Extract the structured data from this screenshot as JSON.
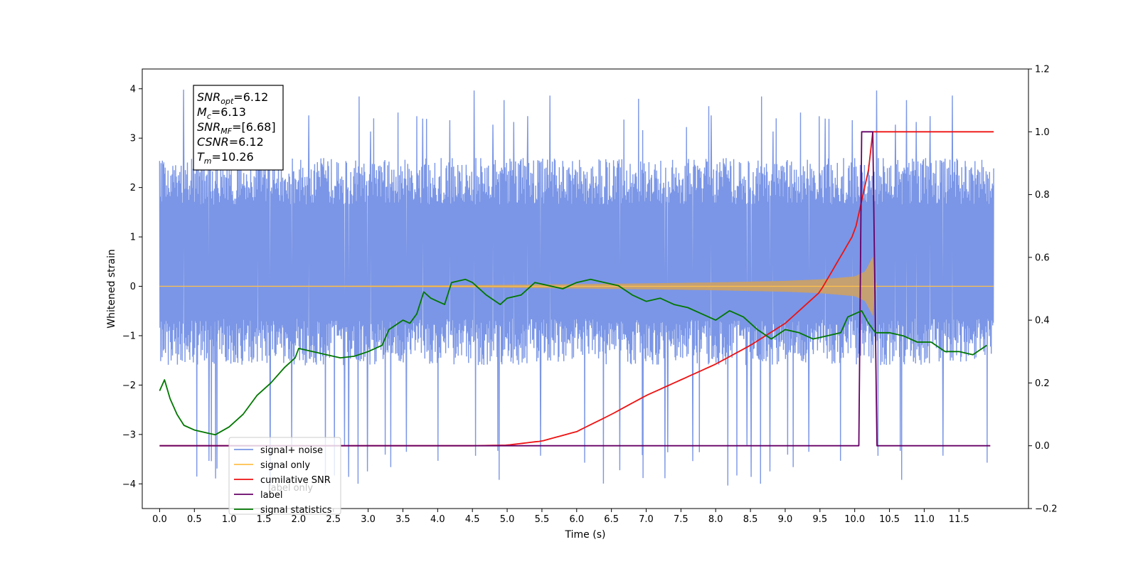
{
  "chart_data": {
    "type": "line",
    "xlabel": "Time (s)",
    "ylabel": "Whitened strain",
    "xlim": [
      -0.25,
      12.5
    ],
    "ylim": [
      -4.5,
      4.4
    ],
    "y2lim": [
      -0.2,
      1.2
    ],
    "x_ticks": [
      "0.0",
      "0.5",
      "1.0",
      "1.5",
      "2.0",
      "2.5",
      "3.0",
      "3.5",
      "4.0",
      "4.5",
      "5.0",
      "5.5",
      "6.0",
      "6.5",
      "7.0",
      "7.5",
      "8.0",
      "8.5",
      "9.0",
      "9.5",
      "10.0",
      "10.5",
      "11.0",
      "11.5"
    ],
    "y_ticks": [
      "4",
      "3",
      "2",
      "1",
      "0",
      "−1",
      "−2",
      "−3",
      "−4"
    ],
    "y2_ticks": [
      "1.2",
      "1.0",
      "0.8",
      "0.6",
      "0.4",
      "0.2",
      "0.0",
      "−0.2"
    ],
    "annotation": {
      "lines": [
        {
          "sym": "SNR",
          "sub": "opt",
          "val": "=6.12"
        },
        {
          "sym": "M",
          "sub": "c",
          "val": "=6.13"
        },
        {
          "sym": "SNR",
          "sub": "MF",
          "val": "=[6.68]"
        },
        {
          "sym": "CSNR",
          "sub": "",
          "val": "=6.12"
        },
        {
          "sym": "T",
          "sub": "m",
          "val": "=10.26"
        }
      ]
    },
    "legend": {
      "placement": "lower-left",
      "entries": [
        {
          "label": "signal+ noise",
          "color": "#7b96e6"
        },
        {
          "label": "signal only",
          "color": "#ffc04c"
        },
        {
          "label": "cumilative SNR",
          "color": "#ee1111"
        },
        {
          "label": "label",
          "color": "#660066"
        },
        {
          "label": "signal statistics",
          "color": "#007700"
        }
      ],
      "hidden_text": [
        "label only"
      ]
    },
    "series": [
      {
        "name": "signal+ noise",
        "axis": "left",
        "color": "#7b96e6",
        "noise": {
          "x_start": 0.0,
          "x_end": 12.0,
          "center": 0.0,
          "typical_band": [
            -1.6,
            2.6
          ],
          "peak_max": 4.0,
          "peak_min": -4.1
        }
      },
      {
        "name": "signal only",
        "axis": "left",
        "color": "#ffc04c",
        "envelope": {
          "x": [
            0.0,
            2.0,
            4.0,
            5.0,
            6.0,
            7.0,
            8.0,
            9.0,
            9.5,
            10.0,
            10.15,
            10.26,
            10.3,
            12.0
          ],
          "amp": [
            0.005,
            0.01,
            0.02,
            0.03,
            0.045,
            0.06,
            0.08,
            0.11,
            0.14,
            0.2,
            0.3,
            0.6,
            0.0,
            0.0
          ]
        }
      },
      {
        "name": "cumilative SNR",
        "axis": "right",
        "color": "#ee1111",
        "x": [
          0.0,
          4.5,
          5.0,
          5.5,
          6.0,
          6.5,
          7.0,
          7.5,
          8.0,
          8.5,
          9.0,
          9.5,
          10.0,
          10.2,
          10.26,
          12.0
        ],
        "y": [
          0.0,
          0.0,
          0.002,
          0.015,
          0.045,
          0.1,
          0.16,
          0.21,
          0.26,
          0.32,
          0.39,
          0.49,
          0.68,
          0.88,
          1.0,
          1.0
        ]
      },
      {
        "name": "label",
        "axis": "right",
        "color": "#660066",
        "x": [
          0.0,
          10.06,
          10.1,
          10.26,
          10.32,
          11.95
        ],
        "y": [
          0.0,
          0.0,
          1.0,
          1.0,
          0.0,
          0.0
        ]
      },
      {
        "name": "signal statistics",
        "axis": "right",
        "color": "#007700",
        "x": [
          0.0,
          0.07,
          0.15,
          0.25,
          0.35,
          0.5,
          0.7,
          0.8,
          1.0,
          1.2,
          1.4,
          1.6,
          1.8,
          1.95,
          2.0,
          2.2,
          2.4,
          2.6,
          2.8,
          3.0,
          3.2,
          3.3,
          3.5,
          3.6,
          3.7,
          3.8,
          3.9,
          4.0,
          4.1,
          4.2,
          4.4,
          4.5,
          4.7,
          4.9,
          5.0,
          5.2,
          5.4,
          5.6,
          5.8,
          6.0,
          6.2,
          6.4,
          6.6,
          6.8,
          7.0,
          7.2,
          7.4,
          7.6,
          7.8,
          8.0,
          8.2,
          8.4,
          8.5,
          8.6,
          8.8,
          9.0,
          9.2,
          9.4,
          9.6,
          9.8,
          9.9,
          10.0,
          10.1,
          10.2,
          10.3,
          10.5,
          10.7,
          10.9,
          11.1,
          11.3,
          11.5,
          11.7,
          11.9
        ],
        "y": [
          0.175,
          0.21,
          0.15,
          0.1,
          0.065,
          0.05,
          0.04,
          0.035,
          0.06,
          0.1,
          0.16,
          0.2,
          0.25,
          0.28,
          0.31,
          0.3,
          0.29,
          0.28,
          0.285,
          0.3,
          0.32,
          0.37,
          0.4,
          0.39,
          0.42,
          0.49,
          0.47,
          0.46,
          0.45,
          0.52,
          0.53,
          0.52,
          0.48,
          0.45,
          0.47,
          0.48,
          0.52,
          0.51,
          0.5,
          0.52,
          0.53,
          0.52,
          0.51,
          0.48,
          0.46,
          0.47,
          0.45,
          0.44,
          0.42,
          0.4,
          0.43,
          0.41,
          0.39,
          0.37,
          0.34,
          0.37,
          0.36,
          0.34,
          0.35,
          0.36,
          0.41,
          0.42,
          0.43,
          0.39,
          0.36,
          0.36,
          0.35,
          0.33,
          0.33,
          0.3,
          0.3,
          0.29,
          0.32
        ]
      }
    ]
  }
}
